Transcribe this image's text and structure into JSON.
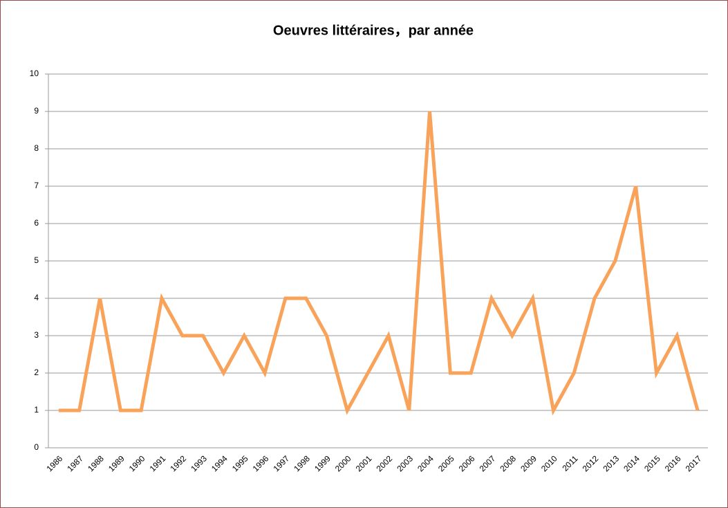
{
  "chart_data": {
    "type": "line",
    "title": "Oeuvres littéraires，par année",
    "categories": [
      "1986",
      "1987",
      "1988",
      "1989",
      "1990",
      "1991",
      "1992",
      "1993",
      "1994",
      "1995",
      "1996",
      "1997",
      "1998",
      "1999",
      "2000",
      "2001",
      "2002",
      "2003",
      "2004",
      "2005",
      "2006",
      "2007",
      "2008",
      "2009",
      "2010",
      "2011",
      "2012",
      "2013",
      "2014",
      "2015",
      "2016",
      "2017"
    ],
    "values": [
      1,
      1,
      4,
      1,
      1,
      4,
      3,
      3,
      2,
      3,
      2,
      4,
      4,
      3,
      1,
      2,
      3,
      1,
      9,
      2,
      2,
      4,
      3,
      4,
      1,
      2,
      4,
      5,
      7,
      2,
      3,
      1
    ],
    "color": "#f9a35a",
    "ylim": [
      0,
      10
    ],
    "yticks": [
      0,
      1,
      2,
      3,
      4,
      5,
      6,
      7,
      8,
      9,
      10
    ],
    "grid": true
  }
}
